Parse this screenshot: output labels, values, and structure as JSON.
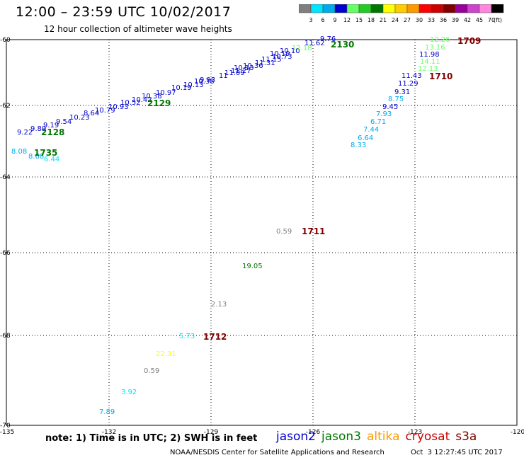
{
  "header": {
    "title": "12:00 – 23:59 UTC 10/02/2017",
    "subtitle": "12 hour collection of altimeter wave heights"
  },
  "legend": {
    "unit": "(ft)",
    "bins": [
      {
        "label": "3",
        "color": "#7f7f7f"
      },
      {
        "label": "6",
        "color": "#00e5ff"
      },
      {
        "label": "9",
        "color": "#00aaee"
      },
      {
        "label": "12",
        "color": "#0000cc"
      },
      {
        "label": "15",
        "color": "#66ff66"
      },
      {
        "label": "18",
        "color": "#22cc22"
      },
      {
        "label": "21",
        "color": "#007700"
      },
      {
        "label": "24",
        "color": "#ffff00"
      },
      {
        "label": "27",
        "color": "#ffcc00"
      },
      {
        "label": "30",
        "color": "#ff9900"
      },
      {
        "label": "33",
        "color": "#ff0000"
      },
      {
        "label": "36",
        "color": "#cc0000"
      },
      {
        "label": "39",
        "color": "#800000"
      },
      {
        "label": "42",
        "color": "#990099"
      },
      {
        "label": "45",
        "color": "#cc44cc"
      },
      {
        "label": "70",
        "color": "#ff88dd"
      },
      {
        "label": "",
        "color": "#000000"
      }
    ]
  },
  "map": {
    "lon_ticks": [
      "-135",
      "-132",
      "-129",
      "-126",
      "-123",
      "-120"
    ],
    "lat_ticks": [
      "-60",
      "-62",
      "-64",
      "-66",
      "-68",
      "-70"
    ]
  },
  "observations": [
    {
      "text": "9.22",
      "color": "#0000cc"
    },
    {
      "text": "9.89",
      "color": "#0000cc"
    },
    {
      "text": "9.19",
      "color": "#0000cc"
    },
    {
      "text": "9.54",
      "color": "#0000cc"
    },
    {
      "text": "10.23",
      "color": "#0000cc"
    },
    {
      "text": "8.64",
      "color": "#0000cc"
    },
    {
      "text": "10.79",
      "color": "#0000cc"
    },
    {
      "text": "10.93",
      "color": "#0000cc"
    },
    {
      "text": "10.52",
      "color": "#0000cc"
    },
    {
      "text": "10.42",
      "color": "#0000cc"
    },
    {
      "text": "10.38",
      "color": "#0000cc"
    },
    {
      "text": "10.97",
      "color": "#0000cc"
    },
    {
      "text": "10.19",
      "color": "#0000cc"
    },
    {
      "text": "10.13",
      "color": "#0000cc"
    },
    {
      "text": "10.38",
      "color": "#0000cc"
    },
    {
      "text": "9.93",
      "color": "#0000cc"
    },
    {
      "text": "11",
      "color": "#0000cc"
    },
    {
      "text": "11.09",
      "color": "#0000cc"
    },
    {
      "text": "11.27",
      "color": "#0000cc"
    },
    {
      "text": "10.13",
      "color": "#0000cc"
    },
    {
      "text": "10.36",
      "color": "#0000cc"
    },
    {
      "text": "11.31",
      "color": "#0000cc"
    },
    {
      "text": "11.15",
      "color": "#0000cc"
    },
    {
      "text": "10.73",
      "color": "#0000cc"
    },
    {
      "text": "10.19",
      "color": "#0000cc"
    },
    {
      "text": "10.10",
      "color": "#0000cc"
    },
    {
      "text": "12.18",
      "color": "#66ff66"
    },
    {
      "text": "11.62",
      "color": "#0000cc"
    },
    {
      "text": "9.76",
      "color": "#0000cc"
    },
    {
      "text": "8.08",
      "color": "#00aaee"
    },
    {
      "text": "8.68",
      "color": "#00aaee"
    },
    {
      "text": "6.44",
      "color": "#00e5ff"
    },
    {
      "text": "12.26",
      "color": "#66ff66"
    },
    {
      "text": "13.16",
      "color": "#66ff66"
    },
    {
      "text": "11.98",
      "color": "#0000cc"
    },
    {
      "text": "14.11",
      "color": "#66ff66"
    },
    {
      "text": "12.13",
      "color": "#66ff66"
    },
    {
      "text": "11.43",
      "color": "#0000cc"
    },
    {
      "text": "11.29",
      "color": "#0000cc"
    },
    {
      "text": "9.31",
      "color": "#0000cc"
    },
    {
      "text": "8.75",
      "color": "#00aaee"
    },
    {
      "text": "9.45",
      "color": "#0000cc"
    },
    {
      "text": "7.93",
      "color": "#00aaee"
    },
    {
      "text": "6.71",
      "color": "#00aaee"
    },
    {
      "text": "7.44",
      "color": "#00aaee"
    },
    {
      "text": "6.64",
      "color": "#00aaee"
    },
    {
      "text": "8.33",
      "color": "#00aaee"
    },
    {
      "text": "0.59",
      "color": "#7f7f7f"
    },
    {
      "text": "19.05",
      "color": "#007700"
    },
    {
      "text": "2.13",
      "color": "#7f7f7f"
    },
    {
      "text": "5.73",
      "color": "#00e5ff"
    },
    {
      "text": "22.31",
      "color": "#ffff00"
    },
    {
      "text": "0.59",
      "color": "#7f7f7f"
    },
    {
      "text": "3.92",
      "color": "#00e5ff"
    },
    {
      "text": "7.89",
      "color": "#00aaee"
    }
  ],
  "pass_times": [
    {
      "text": "2128",
      "color": "#007700"
    },
    {
      "text": "2129",
      "color": "#007700"
    },
    {
      "text": "2130",
      "color": "#007700"
    },
    {
      "text": "1735",
      "color": "#007700"
    },
    {
      "text": "1709",
      "color": "#800000"
    },
    {
      "text": "1710",
      "color": "#800000"
    },
    {
      "text": "1711",
      "color": "#800000"
    },
    {
      "text": "1712",
      "color": "#800000"
    }
  ],
  "footer": {
    "note": "note: 1) Time is in UTC; 2) SWH is in feet",
    "sources": [
      {
        "name": "jason2",
        "color": "#0000cc"
      },
      {
        "name": "jason3",
        "color": "#007700"
      },
      {
        "name": "altika",
        "color": "#ff9900"
      },
      {
        "name": "cryosat",
        "color": "#cc0000"
      },
      {
        "name": "s3a",
        "color": "#800000"
      }
    ],
    "credit": "NOAA/NESDIS Center for Satellite Applications and Research",
    "timestamp": "Oct  3 12:27:45 UTC 2017"
  }
}
